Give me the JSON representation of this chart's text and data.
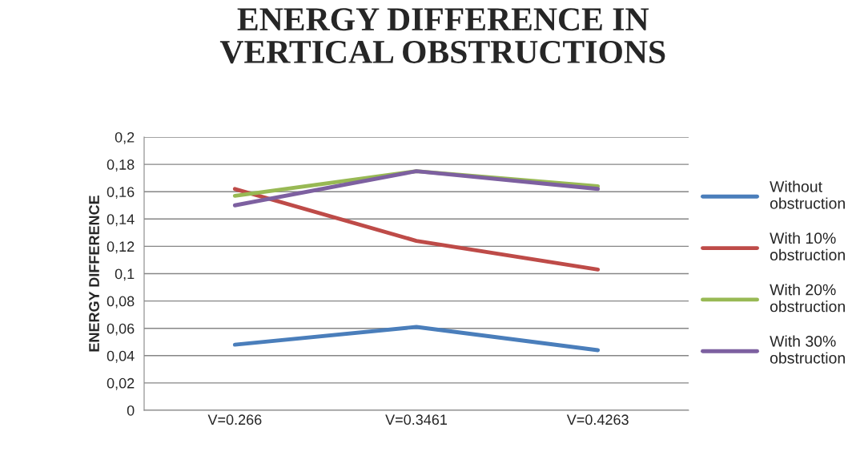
{
  "chart_data": {
    "type": "line",
    "title": "ENERGY DIFFERENCE IN\nVERTICAL OBSTRUCTIONS",
    "ylabel": "ENERGY DIFFERENCE",
    "categories": [
      "V=0.266",
      "V=0.3461",
      "V=0.4263"
    ],
    "series": [
      {
        "name": "Without obstruction",
        "color": "#4a7ebb",
        "values": [
          0.048,
          0.061,
          0.044
        ]
      },
      {
        "name": "With 10% obstruction",
        "color": "#be4b48",
        "values": [
          0.162,
          0.124,
          0.103
        ]
      },
      {
        "name": "With 20% obstruction",
        "color": "#98b954",
        "values": [
          0.157,
          0.175,
          0.164
        ]
      },
      {
        "name": "With 30% obstruction",
        "color": "#7d60a0",
        "values": [
          0.15,
          0.175,
          0.162
        ]
      }
    ],
    "ylim": [
      0,
      0.2
    ],
    "yticks": [
      0,
      {
        "value": 0.02,
        "label": "0,02"
      },
      {
        "value": 0.04,
        "label": "0,04"
      },
      {
        "value": 0.06,
        "label": "0,06"
      },
      {
        "value": 0.08,
        "label": "0,08"
      },
      {
        "value": 0.1,
        "label": "0,1"
      },
      {
        "value": 0.12,
        "label": "0,12"
      },
      {
        "value": 0.14,
        "label": "0,14"
      },
      {
        "value": 0.16,
        "label": "0,16"
      },
      {
        "value": 0.18,
        "label": "0,18"
      },
      {
        "value": 0.2,
        "label": "0,2"
      }
    ],
    "grid": "y",
    "legend": "right",
    "marker": "none",
    "line_style": "solid"
  }
}
